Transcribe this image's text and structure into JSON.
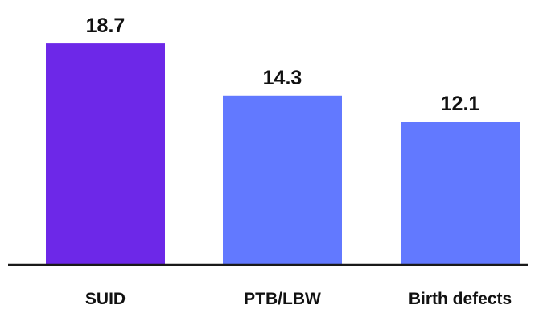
{
  "chart_data": {
    "type": "bar",
    "title": "",
    "xlabel": "",
    "ylabel": "",
    "categories": [
      "SUID",
      "PTB/LBW",
      "Birth defects"
    ],
    "values": [
      18.7,
      14.3,
      12.1
    ],
    "value_labels": [
      "18.7",
      "14.3",
      "12.1"
    ],
    "bar_colors": [
      "#6D28E8",
      "#6279FF",
      "#6279FF"
    ],
    "ylim": [
      0,
      20
    ],
    "grid": false,
    "legend": "none"
  }
}
